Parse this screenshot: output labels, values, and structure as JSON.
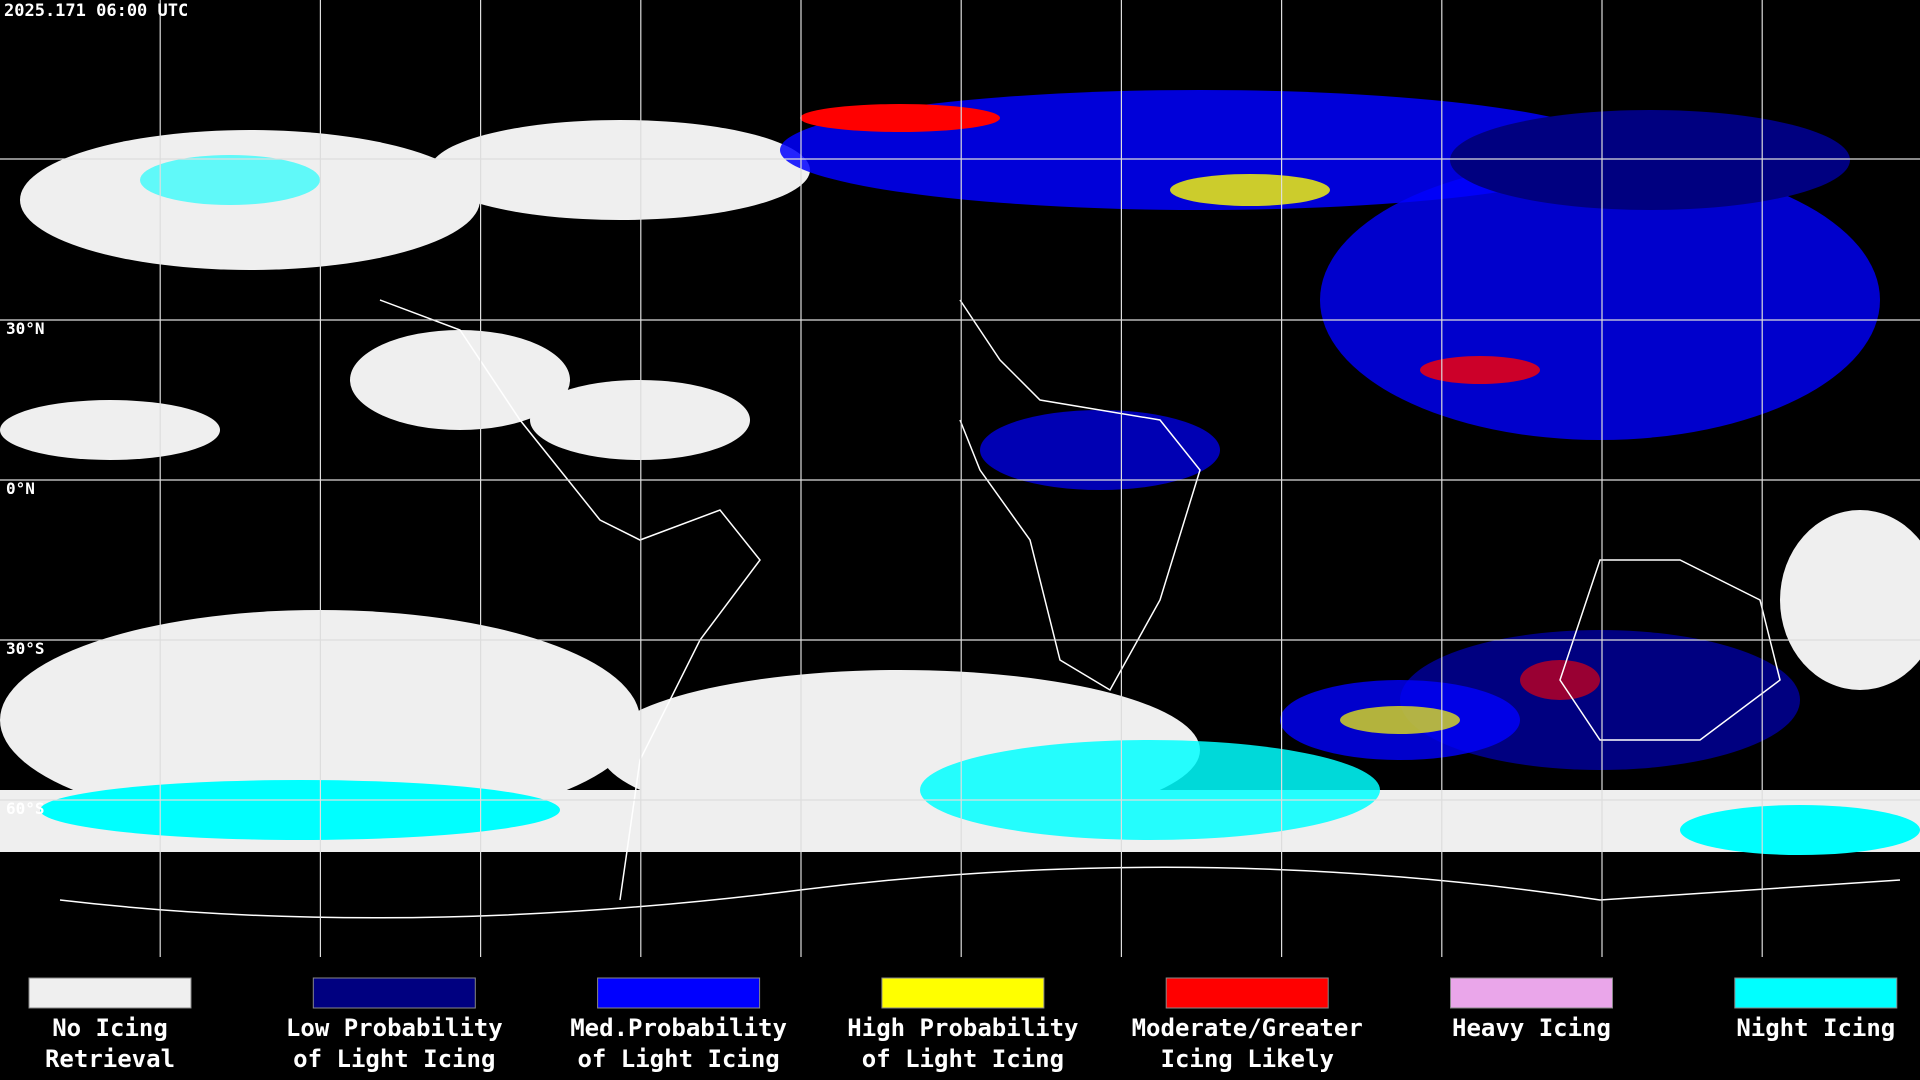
{
  "header": {
    "timestamp": "2025.171 06:00 UTC"
  },
  "map": {
    "lat_labels": [
      "30°N",
      "0°N",
      "30°S",
      "60°S"
    ]
  },
  "legend": {
    "items": [
      {
        "lines": [
          "No Icing",
          "Retrieval"
        ],
        "color": "#efefef"
      },
      {
        "lines": [
          "Low Probability",
          "of Light Icing"
        ],
        "color": "#000080"
      },
      {
        "lines": [
          "Med.Probability",
          "of Light Icing"
        ],
        "color": "#0000ff"
      },
      {
        "lines": [
          "High Probability",
          "of Light Icing"
        ],
        "color": "#ffff00"
      },
      {
        "lines": [
          "Moderate/Greater",
          "Icing Likely"
        ],
        "color": "#ff0000"
      },
      {
        "lines": [
          "Heavy Icing"
        ],
        "color": "#eaa6ea"
      },
      {
        "lines": [
          "Night Icing"
        ],
        "color": "#00ffff"
      }
    ]
  }
}
